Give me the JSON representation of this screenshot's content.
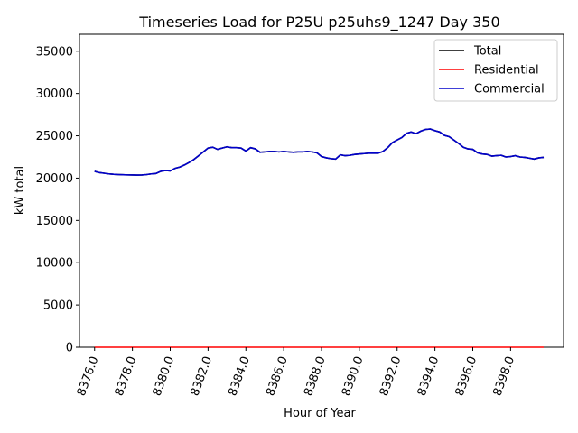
{
  "chart_data": {
    "type": "line",
    "title": "Timeseries Load for P25U p25uhs9_1247  Day 350",
    "xlabel": "Hour of Year",
    "ylabel": "kW total",
    "xlim": [
      8375.2,
      8400.8
    ],
    "ylim": [
      0,
      37000
    ],
    "xticks": [
      8376,
      8378,
      8380,
      8382,
      8384,
      8386,
      8388,
      8390,
      8392,
      8394,
      8396,
      8398
    ],
    "xtick_labels": [
      "8376.0",
      "8378.0",
      "8380.0",
      "8382.0",
      "8384.0",
      "8386.0",
      "8388.0",
      "8390.0",
      "8392.0",
      "8394.0",
      "8396.0",
      "8398.0"
    ],
    "yticks": [
      0,
      5000,
      10000,
      15000,
      20000,
      25000,
      30000,
      35000
    ],
    "ytick_labels": [
      "0",
      "5000",
      "10000",
      "15000",
      "20000",
      "25000",
      "30000",
      "35000"
    ],
    "legend_position": "top-right",
    "x": [
      8376.0,
      8376.25,
      8376.5,
      8376.75,
      8377.0,
      8377.25,
      8377.5,
      8377.75,
      8378.0,
      8378.25,
      8378.5,
      8378.75,
      8379.0,
      8379.25,
      8379.5,
      8379.75,
      8380.0,
      8380.25,
      8380.5,
      8380.75,
      8381.0,
      8381.25,
      8381.5,
      8381.75,
      8382.0,
      8382.25,
      8382.5,
      8382.75,
      8383.0,
      8383.25,
      8383.5,
      8383.75,
      8384.0,
      8384.25,
      8384.5,
      8384.75,
      8385.0,
      8385.25,
      8385.5,
      8385.75,
      8386.0,
      8386.25,
      8386.5,
      8386.75,
      8387.0,
      8387.25,
      8387.5,
      8387.75,
      8388.0,
      8388.25,
      8388.5,
      8388.75,
      8389.0,
      8389.25,
      8389.5,
      8389.75,
      8390.0,
      8390.25,
      8390.5,
      8390.75,
      8391.0,
      8391.25,
      8391.5,
      8391.75,
      8392.0,
      8392.25,
      8392.5,
      8392.75,
      8393.0,
      8393.25,
      8393.5,
      8393.75,
      8394.0,
      8394.25,
      8394.5,
      8394.75,
      8395.0,
      8395.25,
      8395.5,
      8395.75,
      8396.0,
      8396.25,
      8396.5,
      8396.75,
      8397.0,
      8397.25,
      8397.5,
      8397.75,
      8398.0,
      8398.25,
      8398.5,
      8398.75,
      8399.0,
      8399.25,
      8399.5,
      8399.75
    ],
    "series": [
      {
        "name": "Total",
        "color": "#000000",
        "values": [
          20800,
          20650,
          20580,
          20500,
          20450,
          20420,
          20400,
          20380,
          20370,
          20360,
          20370,
          20420,
          20500,
          20550,
          20800,
          20900,
          20850,
          21150,
          21300,
          21550,
          21850,
          22200,
          22650,
          23100,
          23550,
          23650,
          23400,
          23550,
          23700,
          23600,
          23600,
          23550,
          23200,
          23600,
          23450,
          23050,
          23100,
          23150,
          23150,
          23100,
          23150,
          23100,
          23050,
          23100,
          23100,
          23150,
          23100,
          23000,
          22550,
          22400,
          22300,
          22250,
          22750,
          22650,
          22700,
          22800,
          22850,
          22900,
          22950,
          22950,
          22950,
          23150,
          23600,
          24200,
          24500,
          24800,
          25300,
          25450,
          25250,
          25550,
          25750,
          25800,
          25600,
          25450,
          25050,
          24900,
          24500,
          24100,
          23650,
          23450,
          23400,
          23000,
          22850,
          22800,
          22600,
          22650,
          22700,
          22500,
          22550,
          22650,
          22500,
          22450,
          22350,
          22250,
          22400,
          22450
        ]
      },
      {
        "name": "Residential",
        "color": "#ff0000",
        "values": [
          0,
          0,
          0,
          0,
          0,
          0,
          0,
          0,
          0,
          0,
          0,
          0,
          0,
          0,
          0,
          0,
          0,
          0,
          0,
          0,
          0,
          0,
          0,
          0,
          0,
          0,
          0,
          0,
          0,
          0,
          0,
          0,
          0,
          0,
          0,
          0,
          0,
          0,
          0,
          0,
          0,
          0,
          0,
          0,
          0,
          0,
          0,
          0,
          0,
          0,
          0,
          0,
          0,
          0,
          0,
          0,
          0,
          0,
          0,
          0,
          0,
          0,
          0,
          0,
          0,
          0,
          0,
          0,
          0,
          0,
          0,
          0,
          0,
          0,
          0,
          0,
          0,
          0,
          0,
          0,
          0,
          0,
          0,
          0,
          0,
          0,
          0,
          0,
          0,
          0,
          0,
          0,
          0,
          0,
          0,
          0
        ]
      },
      {
        "name": "Commercial",
        "color": "#0000cc",
        "values": [
          20800,
          20650,
          20580,
          20500,
          20450,
          20420,
          20400,
          20380,
          20370,
          20360,
          20370,
          20420,
          20500,
          20550,
          20800,
          20900,
          20850,
          21150,
          21300,
          21550,
          21850,
          22200,
          22650,
          23100,
          23550,
          23650,
          23400,
          23550,
          23700,
          23600,
          23600,
          23550,
          23200,
          23600,
          23450,
          23050,
          23100,
          23150,
          23150,
          23100,
          23150,
          23100,
          23050,
          23100,
          23100,
          23150,
          23100,
          23000,
          22550,
          22400,
          22300,
          22250,
          22750,
          22650,
          22700,
          22800,
          22850,
          22900,
          22950,
          22950,
          22950,
          23150,
          23600,
          24200,
          24500,
          24800,
          25300,
          25450,
          25250,
          25550,
          25750,
          25800,
          25600,
          25450,
          25050,
          24900,
          24500,
          24100,
          23650,
          23450,
          23400,
          23000,
          22850,
          22800,
          22600,
          22650,
          22700,
          22500,
          22550,
          22650,
          22500,
          22450,
          22350,
          22250,
          22400,
          22450
        ]
      }
    ]
  }
}
